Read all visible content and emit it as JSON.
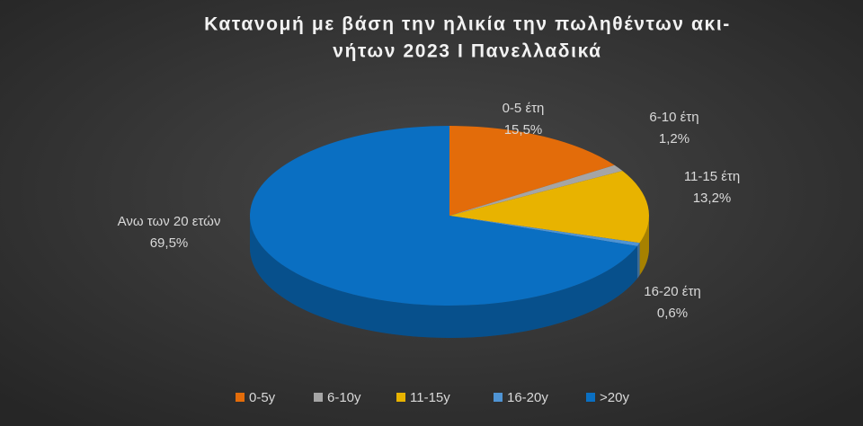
{
  "chart_data": {
    "type": "pie3d",
    "title": [
      "Κατανομή με βάση την ηλικία την πωληθέντων ακι-",
      "νήτων 2023 Ι Πανελλαδικά"
    ],
    "categories": [
      "0-5y",
      "6-10y",
      "11-15y",
      "16-20y",
      ">20y"
    ],
    "label_names": [
      "0-5 έτη",
      "6-10 έτη",
      "11-15 έτη",
      "16-20 έτη",
      "Ανω των 20 ετών"
    ],
    "values": [
      15.5,
      1.2,
      13.2,
      0.6,
      69.5
    ],
    "value_labels": [
      "15,5%",
      "1,2%",
      "13,2%",
      "0,6%",
      "69,5%"
    ],
    "colors": [
      "#e36c0a",
      "#a5a5a5",
      "#e8b300",
      "#4f94d4",
      "#0a6fc2"
    ],
    "legend": "bottom"
  }
}
